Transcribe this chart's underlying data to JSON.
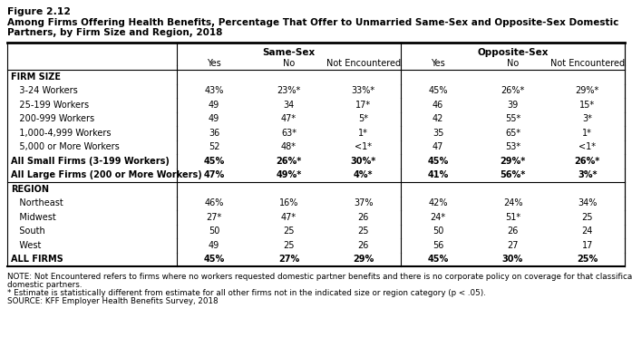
{
  "figure_label": "Figure 2.12",
  "title_line1": "Among Firms Offering Health Benefits, Percentage That Offer to Unmarried Same-Sex and Opposite-Sex Domestic",
  "title_line2": "Partners, by Firm Size and Region, 2018",
  "rows": [
    {
      "label": "FIRM SIZE",
      "bold": true,
      "header": true,
      "values": [
        "",
        "",
        "",
        "",
        "",
        ""
      ]
    },
    {
      "label": "   3-24 Workers",
      "bold": false,
      "header": false,
      "values": [
        "43%",
        "23%*",
        "33%*",
        "45%",
        "26%*",
        "29%*"
      ]
    },
    {
      "label": "   25-199 Workers",
      "bold": false,
      "header": false,
      "values": [
        "49",
        "34",
        "17*",
        "46",
        "39",
        "15*"
      ]
    },
    {
      "label": "   200-999 Workers",
      "bold": false,
      "header": false,
      "values": [
        "49",
        "47*",
        "5*",
        "42",
        "55*",
        "3*"
      ]
    },
    {
      "label": "   1,000-4,999 Workers",
      "bold": false,
      "header": false,
      "values": [
        "36",
        "63*",
        "1*",
        "35",
        "65*",
        "1*"
      ]
    },
    {
      "label": "   5,000 or More Workers",
      "bold": false,
      "header": false,
      "values": [
        "52",
        "48*",
        "<1*",
        "47",
        "53*",
        "<1*"
      ]
    },
    {
      "label": "All Small Firms (3-199 Workers)",
      "bold": true,
      "header": false,
      "values": [
        "45%",
        "26%*",
        "30%*",
        "45%",
        "29%*",
        "26%*"
      ]
    },
    {
      "label": "All Large Firms (200 or More Workers)",
      "bold": true,
      "header": false,
      "values": [
        "47%",
        "49%*",
        "4%*",
        "41%",
        "56%*",
        "3%*"
      ],
      "bottom_line": true
    },
    {
      "label": "REGION",
      "bold": true,
      "header": true,
      "values": [
        "",
        "",
        "",
        "",
        "",
        ""
      ]
    },
    {
      "label": "   Northeast",
      "bold": false,
      "header": false,
      "values": [
        "46%",
        "16%",
        "37%",
        "42%",
        "24%",
        "34%"
      ]
    },
    {
      "label": "   Midwest",
      "bold": false,
      "header": false,
      "values": [
        "27*",
        "47*",
        "26",
        "24*",
        "51*",
        "25"
      ]
    },
    {
      "label": "   South",
      "bold": false,
      "header": false,
      "values": [
        "50",
        "25",
        "25",
        "50",
        "26",
        "24"
      ]
    },
    {
      "label": "   West",
      "bold": false,
      "header": false,
      "values": [
        "49",
        "25",
        "26",
        "56",
        "27",
        "17"
      ]
    },
    {
      "label": "ALL FIRMS",
      "bold": true,
      "header": false,
      "values": [
        "45%",
        "27%",
        "29%",
        "45%",
        "30%",
        "25%"
      ],
      "bottom_line": true
    }
  ],
  "note_lines": [
    "NOTE: Not Encountered refers to firms where no workers requested domestic partner benefits and there is no corporate policy on coverage for that classification of",
    "domestic partners.",
    "* Estimate is statistically different from estimate for all other firms not in the indicated size or region category (p < .05).",
    "SOURCE: KFF Employer Health Benefits Survey, 2018"
  ],
  "bg_color": "#ffffff",
  "text_color": "#000000"
}
